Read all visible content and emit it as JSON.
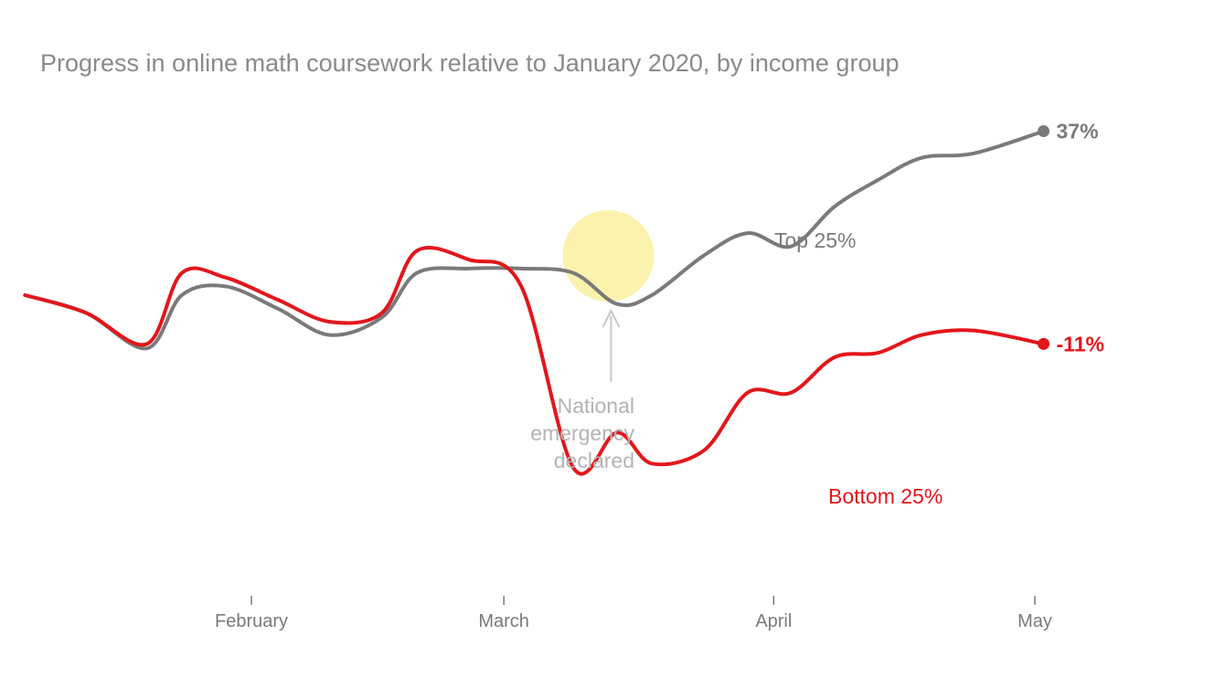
{
  "chart_data": {
    "type": "line",
    "title": "Progress in online math coursework relative to January 2020, by income group",
    "x_labels": [
      "February",
      "March",
      "April",
      "May"
    ],
    "series": [
      {
        "name": "Top 25%",
        "end_label": "37%",
        "color": "#7a7a7a",
        "x": [
          "2020-01-06",
          "2020-01-13",
          "2020-01-20",
          "2020-01-24",
          "2020-01-29",
          "2020-02-04",
          "2020-02-10",
          "2020-02-16",
          "2020-02-20",
          "2020-02-26",
          "2020-03-03",
          "2020-03-09",
          "2020-03-14",
          "2020-03-18",
          "2020-03-24",
          "2020-03-29",
          "2020-04-03",
          "2020-04-08",
          "2020-04-13",
          "2020-04-18",
          "2020-04-24",
          "2020-05-02"
        ],
        "y": [
          0,
          -4,
          -12,
          0,
          2,
          -3,
          -9,
          -5,
          5,
          6,
          6,
          5,
          -2,
          0,
          9,
          14,
          11,
          20,
          26,
          31,
          32,
          37
        ]
      },
      {
        "name": "Bottom 25%",
        "end_label": "-11%",
        "color": "#e3161b",
        "x": [
          "2020-01-06",
          "2020-01-13",
          "2020-01-20",
          "2020-01-24",
          "2020-01-29",
          "2020-02-04",
          "2020-02-10",
          "2020-02-16",
          "2020-02-20",
          "2020-02-26",
          "2020-03-03",
          "2020-03-09",
          "2020-03-14",
          "2020-03-18",
          "2020-03-24",
          "2020-03-29",
          "2020-04-03",
          "2020-04-08",
          "2020-04-13",
          "2020-04-18",
          "2020-04-24",
          "2020-05-02"
        ],
        "y": [
          0,
          -4,
          -11,
          5,
          4,
          -1,
          -6,
          -4,
          10,
          8,
          2,
          -39,
          -31,
          -38,
          -35,
          -22,
          -22,
          -14,
          -13,
          -9,
          -8,
          -11
        ]
      }
    ],
    "annotation": {
      "x": "2020-03-13",
      "text_lines": [
        "National",
        "emergency",
        "declared"
      ]
    }
  }
}
